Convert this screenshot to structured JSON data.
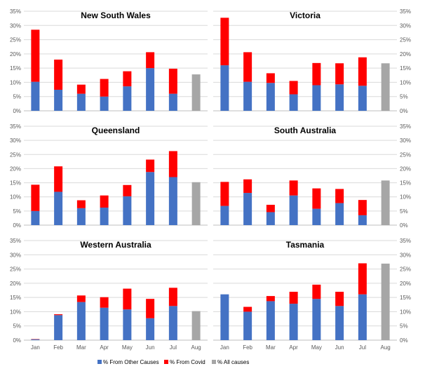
{
  "colors": {
    "other_causes": "#4472C4",
    "covid": "#FF0000",
    "all_causes": "#A6A6A6",
    "grid": "#D9D9D9",
    "tick_text": "#595959"
  },
  "legend": {
    "items": [
      {
        "label": "% From Other Causes",
        "color_key": "other_causes"
      },
      {
        "label": "% From Covid",
        "color_key": "covid"
      },
      {
        "label": "% All causes",
        "color_key": "all_causes"
      }
    ]
  },
  "chart_data": [
    {
      "type": "bar",
      "title": "New South Wales",
      "categories": [
        "Jan",
        "Feb",
        "Mar",
        "Apr",
        "May",
        "Jun",
        "Jul",
        "Aug"
      ],
      "y_ticks": [
        "0%",
        "5%",
        "10%",
        "15%",
        "20%",
        "25%",
        "30%",
        "35%"
      ],
      "ylim": [
        0,
        35
      ],
      "axis_side": "left",
      "stacked": true,
      "series": [
        {
          "name": "% From Other Causes",
          "values": [
            10.2,
            7.4,
            6.0,
            5.0,
            8.6,
            15.0,
            6.0,
            null
          ]
        },
        {
          "name": "% From Covid",
          "values": [
            18.3,
            10.6,
            3.2,
            6.2,
            5.3,
            5.6,
            8.8,
            null
          ]
        },
        {
          "name": "% All causes",
          "values": [
            null,
            null,
            null,
            null,
            null,
            null,
            null,
            12.8
          ]
        }
      ]
    },
    {
      "type": "bar",
      "title": "Victoria",
      "categories": [
        "Jan",
        "Feb",
        "Mar",
        "Apr",
        "May",
        "Jun",
        "Jul",
        "Aug"
      ],
      "y_ticks": [
        "0%",
        "5%",
        "10%",
        "15%",
        "20%",
        "25%",
        "30%",
        "35%"
      ],
      "ylim": [
        0,
        35
      ],
      "axis_side": "right",
      "stacked": true,
      "series": [
        {
          "name": "% From Other Causes",
          "values": [
            16.0,
            10.2,
            9.8,
            5.8,
            9.0,
            9.3,
            8.8,
            null
          ]
        },
        {
          "name": "% From Covid",
          "values": [
            16.7,
            10.4,
            3.4,
            4.7,
            7.8,
            7.4,
            10.0,
            null
          ]
        },
        {
          "name": "% All causes",
          "values": [
            null,
            null,
            null,
            null,
            null,
            null,
            null,
            16.7
          ]
        }
      ]
    },
    {
      "type": "bar",
      "title": "Queensland",
      "categories": [
        "Jan",
        "Feb",
        "Mar",
        "Apr",
        "May",
        "Jun",
        "Jul",
        "Aug"
      ],
      "y_ticks": [
        "0%",
        "5%",
        "10%",
        "15%",
        "20%",
        "25%",
        "30%",
        "35%"
      ],
      "ylim": [
        0,
        35
      ],
      "axis_side": "left",
      "stacked": true,
      "series": [
        {
          "name": "% From Other Causes",
          "values": [
            5.0,
            11.8,
            6.0,
            6.2,
            10.2,
            18.8,
            17.0,
            null
          ]
        },
        {
          "name": "% From Covid",
          "values": [
            9.3,
            9.0,
            2.8,
            4.3,
            4.0,
            4.4,
            9.2,
            null
          ]
        },
        {
          "name": "% All causes",
          "values": [
            null,
            null,
            null,
            null,
            null,
            null,
            null,
            15.2
          ]
        }
      ]
    },
    {
      "type": "bar",
      "title": "South Australia",
      "categories": [
        "Jan",
        "Feb",
        "Mar",
        "Apr",
        "May",
        "Jun",
        "Jul",
        "Aug"
      ],
      "y_ticks": [
        "0%",
        "5%",
        "10%",
        "15%",
        "20%",
        "25%",
        "30%",
        "35%"
      ],
      "ylim": [
        0,
        35
      ],
      "axis_side": "right",
      "stacked": true,
      "series": [
        {
          "name": "% From Other Causes",
          "values": [
            6.8,
            11.4,
            4.6,
            10.5,
            5.8,
            7.8,
            3.5,
            null
          ]
        },
        {
          "name": "% From Covid",
          "values": [
            8.5,
            4.8,
            2.6,
            5.3,
            7.2,
            5.0,
            5.4,
            null
          ]
        },
        {
          "name": "% All causes",
          "values": [
            null,
            null,
            null,
            null,
            null,
            null,
            null,
            15.8
          ]
        }
      ]
    },
    {
      "type": "bar",
      "title": "Western Australia",
      "categories": [
        "Jan",
        "Feb",
        "Mar",
        "Apr",
        "May",
        "Jun",
        "Jul",
        "Aug"
      ],
      "y_ticks": [
        "0%",
        "5%",
        "10%",
        "15%",
        "20%",
        "25%",
        "30%",
        "35%"
      ],
      "ylim": [
        0,
        35
      ],
      "axis_side": "left",
      "stacked": true,
      "series": [
        {
          "name": "% From Other Causes",
          "values": [
            0.3,
            8.8,
            13.4,
            11.4,
            10.8,
            7.7,
            12.0,
            null
          ]
        },
        {
          "name": "% From Covid",
          "values": [
            0.1,
            0.3,
            2.3,
            3.7,
            7.3,
            6.8,
            6.4,
            null
          ]
        },
        {
          "name": "% All causes",
          "values": [
            null,
            null,
            null,
            null,
            null,
            null,
            null,
            10.2
          ]
        }
      ]
    },
    {
      "type": "bar",
      "title": "Tasmania",
      "categories": [
        "Jan",
        "Feb",
        "Mar",
        "Apr",
        "May",
        "Jun",
        "Jul",
        "Aug"
      ],
      "y_ticks": [
        "0%",
        "5%",
        "10%",
        "15%",
        "20%",
        "25%",
        "30%",
        "35%"
      ],
      "ylim": [
        0,
        35
      ],
      "axis_side": "right",
      "stacked": true,
      "series": [
        {
          "name": "% From Other Causes",
          "values": [
            16.1,
            10.0,
            13.7,
            12.8,
            14.5,
            12.0,
            16.1,
            null
          ]
        },
        {
          "name": "% From Covid",
          "values": [
            0.0,
            1.7,
            1.8,
            4.2,
            5.0,
            5.0,
            10.9,
            null
          ]
        },
        {
          "name": "% All causes",
          "values": [
            null,
            null,
            null,
            null,
            null,
            null,
            null,
            26.9
          ]
        }
      ]
    }
  ]
}
